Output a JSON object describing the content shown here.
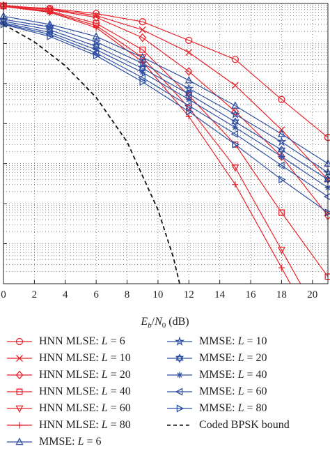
{
  "chart_data": {
    "type": "line",
    "title": "",
    "xlabel": "E_b/N_0 (dB)",
    "xlabel_parts": {
      "E": "E",
      "b": "b",
      "slash": "/",
      "N": "N",
      "zero": "0",
      "unit": " (dB)"
    },
    "ylabel": "",
    "xlim": [
      0,
      21
    ],
    "ylim_log10": [
      -7,
      0
    ],
    "y_scale": "log",
    "x_ticks": [
      "0",
      "2",
      "4",
      "6",
      "8",
      "10",
      "12",
      "14",
      "16",
      "18",
      "20"
    ],
    "x_tick_values": [
      0,
      2,
      4,
      6,
      8,
      10,
      12,
      14,
      16,
      18,
      20
    ],
    "grid": true,
    "legend_position": "below",
    "x": [
      0,
      3,
      6,
      9,
      12,
      15,
      18,
      21
    ],
    "series": [
      {
        "name": "HNN MLSE: L = 6",
        "text": "HNN MLSE: ",
        "L": "L",
        "eq": " = 6",
        "color": "#e8232a",
        "marker": "circle",
        "values": [
          0.87,
          0.75,
          0.56,
          0.35,
          0.12,
          0.04,
          0.004,
          0.00045
        ]
      },
      {
        "name": "HNN MLSE: L = 10",
        "text": "HNN MLSE: ",
        "L": "L",
        "eq": " = 10",
        "color": "#e8232a",
        "marker": "x",
        "values": [
          0.9,
          0.72,
          0.5,
          0.22,
          0.06,
          0.009,
          0.0007,
          4e-05
        ]
      },
      {
        "name": "HNN MLSE: L = 20",
        "text": "HNN MLSE: ",
        "L": "L",
        "eq": " = 20",
        "color": "#e8232a",
        "marker": "diamond",
        "values": [
          0.88,
          0.7,
          0.45,
          0.14,
          0.02,
          0.002,
          0.00015,
          5e-06
        ]
      },
      {
        "name": "HNN MLSE: L = 40",
        "text": "HNN MLSE: ",
        "L": "L",
        "eq": " = 40",
        "color": "#e8232a",
        "marker": "square",
        "values": [
          0.86,
          0.65,
          0.32,
          0.07,
          0.005,
          0.0003,
          6e-06,
          1.5e-07
        ]
      },
      {
        "name": "HNN MLSE: L = 60",
        "text": "HNN MLSE: ",
        "L": "L",
        "eq": " = 60",
        "color": "#e8232a",
        "marker": "triangle-down",
        "values": [
          0.85,
          0.62,
          0.28,
          0.045,
          0.0025,
          8e-05,
          7e-07,
          6e-09
        ]
      },
      {
        "name": "HNN MLSE: L = 80",
        "text": "HNN MLSE: ",
        "L": "L",
        "eq": " = 80",
        "color": "#e8232a",
        "marker": "plus",
        "values": [
          0.84,
          0.6,
          0.25,
          0.035,
          0.0015,
          3e-05,
          2.5e-07,
          2e-09
        ]
      },
      {
        "name": "MMSE: L = 6",
        "text": "MMSE: ",
        "L": "L",
        "eq": " = 6",
        "color": "#2e4fa3",
        "marker": "triangle-up",
        "values": [
          0.48,
          0.3,
          0.15,
          0.045,
          0.012,
          0.0028,
          0.00055,
          0.0001
        ]
      },
      {
        "name": "MMSE: L = 10",
        "text": "MMSE: ",
        "L": "L",
        "eq": " = 10",
        "color": "#2e4fa3",
        "marker": "star",
        "values": [
          0.4,
          0.26,
          0.11,
          0.032,
          0.0075,
          0.0017,
          0.00035,
          6e-05
        ]
      },
      {
        "name": "MMSE: L = 20",
        "text": "MMSE: ",
        "L": "L",
        "eq": " = 20",
        "color": "#2e4fa3",
        "marker": "hexagram",
        "values": [
          0.36,
          0.22,
          0.085,
          0.024,
          0.0055,
          0.0011,
          0.00022,
          4e-05
        ]
      },
      {
        "name": "MMSE: L = 40",
        "text": "MMSE: ",
        "L": "L",
        "eq": " = 40",
        "color": "#2e4fa3",
        "marker": "asterisk",
        "values": [
          0.33,
          0.19,
          0.07,
          0.019,
          0.004,
          0.0008,
          0.00015,
          2.5e-05
        ]
      },
      {
        "name": "MMSE: L = 60",
        "text": "MMSE: ",
        "L": "L",
        "eq": " = 60",
        "color": "#2e4fa3",
        "marker": "triangle-left",
        "values": [
          0.31,
          0.17,
          0.058,
          0.014,
          0.0028,
          0.00055,
          9e-05,
          1.5e-05
        ]
      },
      {
        "name": "MMSE: L = 80",
        "text": "MMSE: ",
        "L": "L",
        "eq": " = 80",
        "color": "#2e4fa3",
        "marker": "triangle-right",
        "values": [
          0.3,
          0.15,
          0.05,
          0.011,
          0.002,
          0.0003,
          4e-05,
          6e-06
        ]
      },
      {
        "name": "Coded BPSK bound",
        "text": "Coded BPSK bound",
        "L": "",
        "eq": "",
        "color": "#111111",
        "marker": "none",
        "dashed": true,
        "curve_x": [
          0,
          2,
          4,
          6,
          8,
          10,
          11,
          12
        ],
        "values": [
          0.3,
          0.11,
          0.028,
          0.0045,
          0.00035,
          7e-06,
          4.5e-07,
          1.05e-08
        ]
      }
    ]
  }
}
